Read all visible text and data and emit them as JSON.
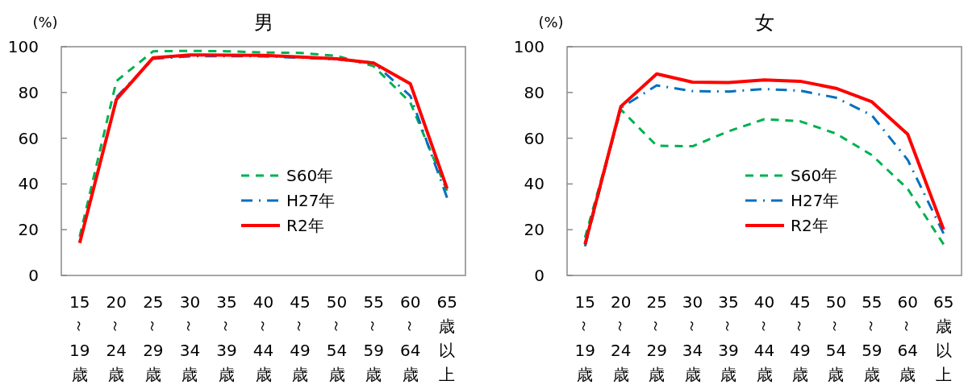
{
  "chart_data": [
    {
      "type": "line",
      "title": "男",
      "ylabel": "(%)",
      "categories": [
        "15～19歳",
        "20～24歳",
        "25～29歳",
        "30～34歳",
        "35～39歳",
        "40～44歳",
        "45～49歳",
        "50～54歳",
        "55～59歳",
        "60～64歳",
        "65歳以上"
      ],
      "series": [
        {
          "name": "S60年",
          "color": "#00b050",
          "line_style": "dashed",
          "values": [
            17,
            85,
            98,
            98.2,
            98,
            97.5,
            97.3,
            96,
            91.5,
            75.6,
            37
          ]
        },
        {
          "name": "H27年",
          "color": "#0070c0",
          "line_style": "dashdot",
          "values": [
            null,
            78,
            94.7,
            95.8,
            95.9,
            95.8,
            95.2,
            94.5,
            93,
            78.5,
            34
          ]
        },
        {
          "name": "R2年",
          "color": "#ff0000",
          "line_style": "solid",
          "values": [
            14.2,
            77,
            95.2,
            96.4,
            96.3,
            96.2,
            95.5,
            94.7,
            92.9,
            83.8,
            38
          ]
        }
      ],
      "ylim": [
        0,
        100
      ],
      "yticks": [
        0,
        20,
        40,
        60,
        80,
        100
      ],
      "grid": false,
      "legend": "bottom right",
      "marker": "none"
    },
    {
      "type": "line",
      "title": "女",
      "ylabel": "(%)",
      "categories": [
        "15～19歳",
        "20～24歳",
        "25～29歳",
        "30～34歳",
        "35～39歳",
        "40～44歳",
        "45～49歳",
        "50～54歳",
        "55～59歳",
        "60～64歳",
        "65歳以上"
      ],
      "series": [
        {
          "name": "S60年",
          "color": "#00b050",
          "line_style": "dashed",
          "values": [
            16.6,
            72.5,
            56.7,
            56.5,
            63,
            68.3,
            67.4,
            62,
            52.6,
            37.8,
            13.6
          ]
        },
        {
          "name": "H27年",
          "color": "#0070c0",
          "line_style": "dashdot",
          "values": [
            12.7,
            73.3,
            83.1,
            80.6,
            80.4,
            81.5,
            80.8,
            77.7,
            70,
            50.5,
            18.3
          ]
        },
        {
          "name": "R2年",
          "color": "#ff0000",
          "line_style": "solid",
          "values": [
            13.6,
            73.9,
            88.1,
            84.5,
            84.3,
            85.5,
            84.9,
            81.8,
            75.9,
            61.7,
            20.1
          ]
        }
      ],
      "ylim": [
        0,
        100
      ],
      "yticks": [
        0,
        20,
        40,
        60,
        80,
        100
      ],
      "grid": false,
      "legend": "bottom right",
      "marker": "none"
    }
  ]
}
